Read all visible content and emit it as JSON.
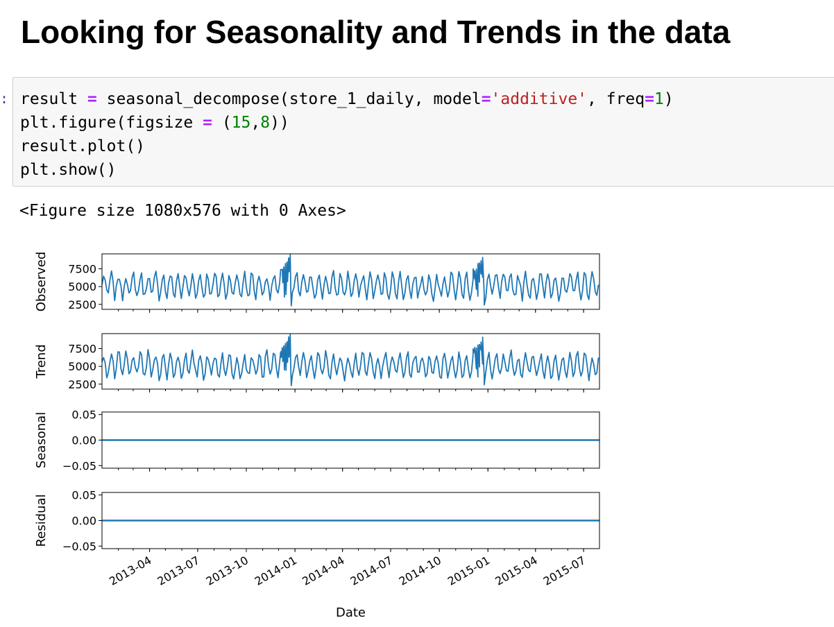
{
  "heading": "Looking for Seasonality and Trends in the data",
  "cell": {
    "prompt": ":",
    "code_lines": [
      "result = seasonal_decompose(store_1_daily, model='additive', freq=1)",
      "plt.figure(figsize = (15,8))",
      "result.plot()",
      "plt.show()"
    ]
  },
  "output_text": "<Figure size 1080x576 with 0 Axes>",
  "colors": {
    "line": "#1f77b4",
    "axes": "#000000"
  },
  "chart_data": [
    {
      "type": "line",
      "ylabel": "Observed",
      "yticks": [
        2500,
        5000,
        7500
      ],
      "ylim": [
        1800,
        9600
      ],
      "series": [
        {
          "x_start": "2013-01-01",
          "x_end": "2015-07-31",
          "peaks": [
            [
              "2013-12-23",
              9500
            ],
            [
              "2014-12-22",
              9100
            ]
          ],
          "dips": [
            [
              "2013-12-25",
              2300
            ],
            [
              "2014-12-25",
              2400
            ]
          ],
          "typical_range": [
            3000,
            7300
          ]
        }
      ]
    },
    {
      "type": "line",
      "ylabel": "Trend",
      "yticks": [
        2500,
        5000,
        7500
      ],
      "ylim": [
        1800,
        9600
      ],
      "series": [
        {
          "x_start": "2013-01-01",
          "x_end": "2015-07-31",
          "peaks": [
            [
              "2013-12-23",
              9500
            ],
            [
              "2014-12-22",
              9100
            ]
          ],
          "dips": [
            [
              "2013-12-25",
              2300
            ],
            [
              "2014-12-25",
              2400
            ]
          ],
          "typical_range": [
            3000,
            7300
          ]
        }
      ]
    },
    {
      "type": "line",
      "ylabel": "Seasonal",
      "yticks": [
        "0.05",
        "0.00",
        "−0.05"
      ],
      "ylim": [
        -0.055,
        0.055
      ],
      "series": [
        {
          "x_start": "2013-01-01",
          "x_end": "2015-07-31",
          "constant": 0.0
        }
      ]
    },
    {
      "type": "line",
      "ylabel": "Residual",
      "yticks": [
        "0.05",
        "0.00",
        "−0.05"
      ],
      "ylim": [
        -0.055,
        0.055
      ],
      "series": [
        {
          "x_start": "2013-01-01",
          "x_end": "2015-07-31",
          "constant": 0.0
        }
      ]
    }
  ],
  "x_axis": {
    "xlabel": "Date",
    "xlim": [
      "2013-01-01",
      "2015-07-31"
    ],
    "tick_labels": [
      "2013-04",
      "2013-07",
      "2013-10",
      "2014-01",
      "2014-04",
      "2014-07",
      "2014-10",
      "2015-01",
      "2015-04",
      "2015-07"
    ]
  }
}
